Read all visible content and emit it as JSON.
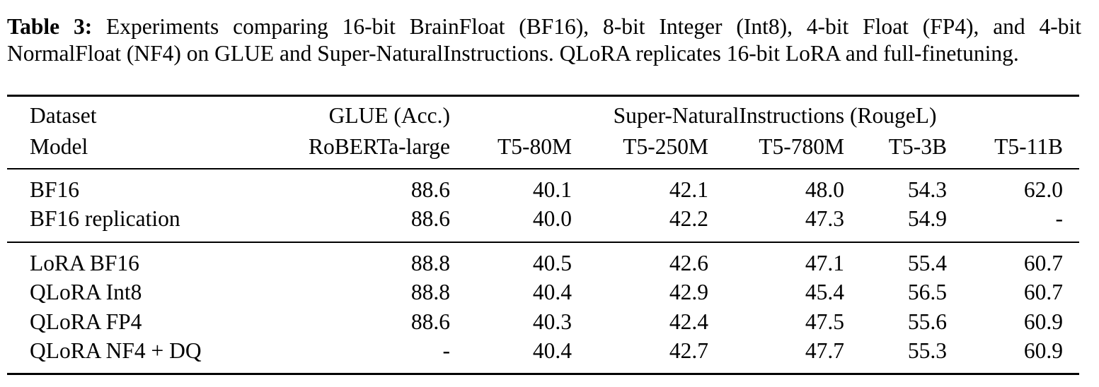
{
  "caption": {
    "label": "Table 3:",
    "text": "Experiments comparing 16-bit BrainFloat (BF16), 8-bit Integer (Int8), 4-bit Float (FP4), and 4-bit NormalFloat (NF4) on GLUE and Super-NaturalInstructions. QLoRA replicates 16-bit LoRA and full-finetuning."
  },
  "header": {
    "dataset_label": "Dataset",
    "model_label": "Model",
    "glue_label": "GLUE (Acc.)",
    "sni_label": "Super-NaturalInstructions (RougeL)",
    "models": [
      "RoBERTa-large",
      "T5-80M",
      "T5-250M",
      "T5-780M",
      "T5-3B",
      "T5-11B"
    ]
  },
  "rows": [
    {
      "name": "BF16",
      "values": [
        "88.6",
        "40.1",
        "42.1",
        "48.0",
        "54.3",
        "62.0"
      ]
    },
    {
      "name": "BF16 replication",
      "values": [
        "88.6",
        "40.0",
        "42.2",
        "47.3",
        "54.9",
        "-"
      ]
    },
    {
      "name": "LoRA BF16",
      "values": [
        "88.8",
        "40.5",
        "42.6",
        "47.1",
        "55.4",
        "60.7"
      ]
    },
    {
      "name": "QLoRA Int8",
      "values": [
        "88.8",
        "40.4",
        "42.9",
        "45.4",
        "56.5",
        "60.7"
      ]
    },
    {
      "name": "QLoRA FP4",
      "values": [
        "88.6",
        "40.3",
        "42.4",
        "47.5",
        "55.6",
        "60.9"
      ]
    },
    {
      "name": "QLoRA NF4 + DQ",
      "values": [
        "-",
        "40.4",
        "42.7",
        "47.7",
        "55.3",
        "60.9"
      ]
    }
  ]
}
